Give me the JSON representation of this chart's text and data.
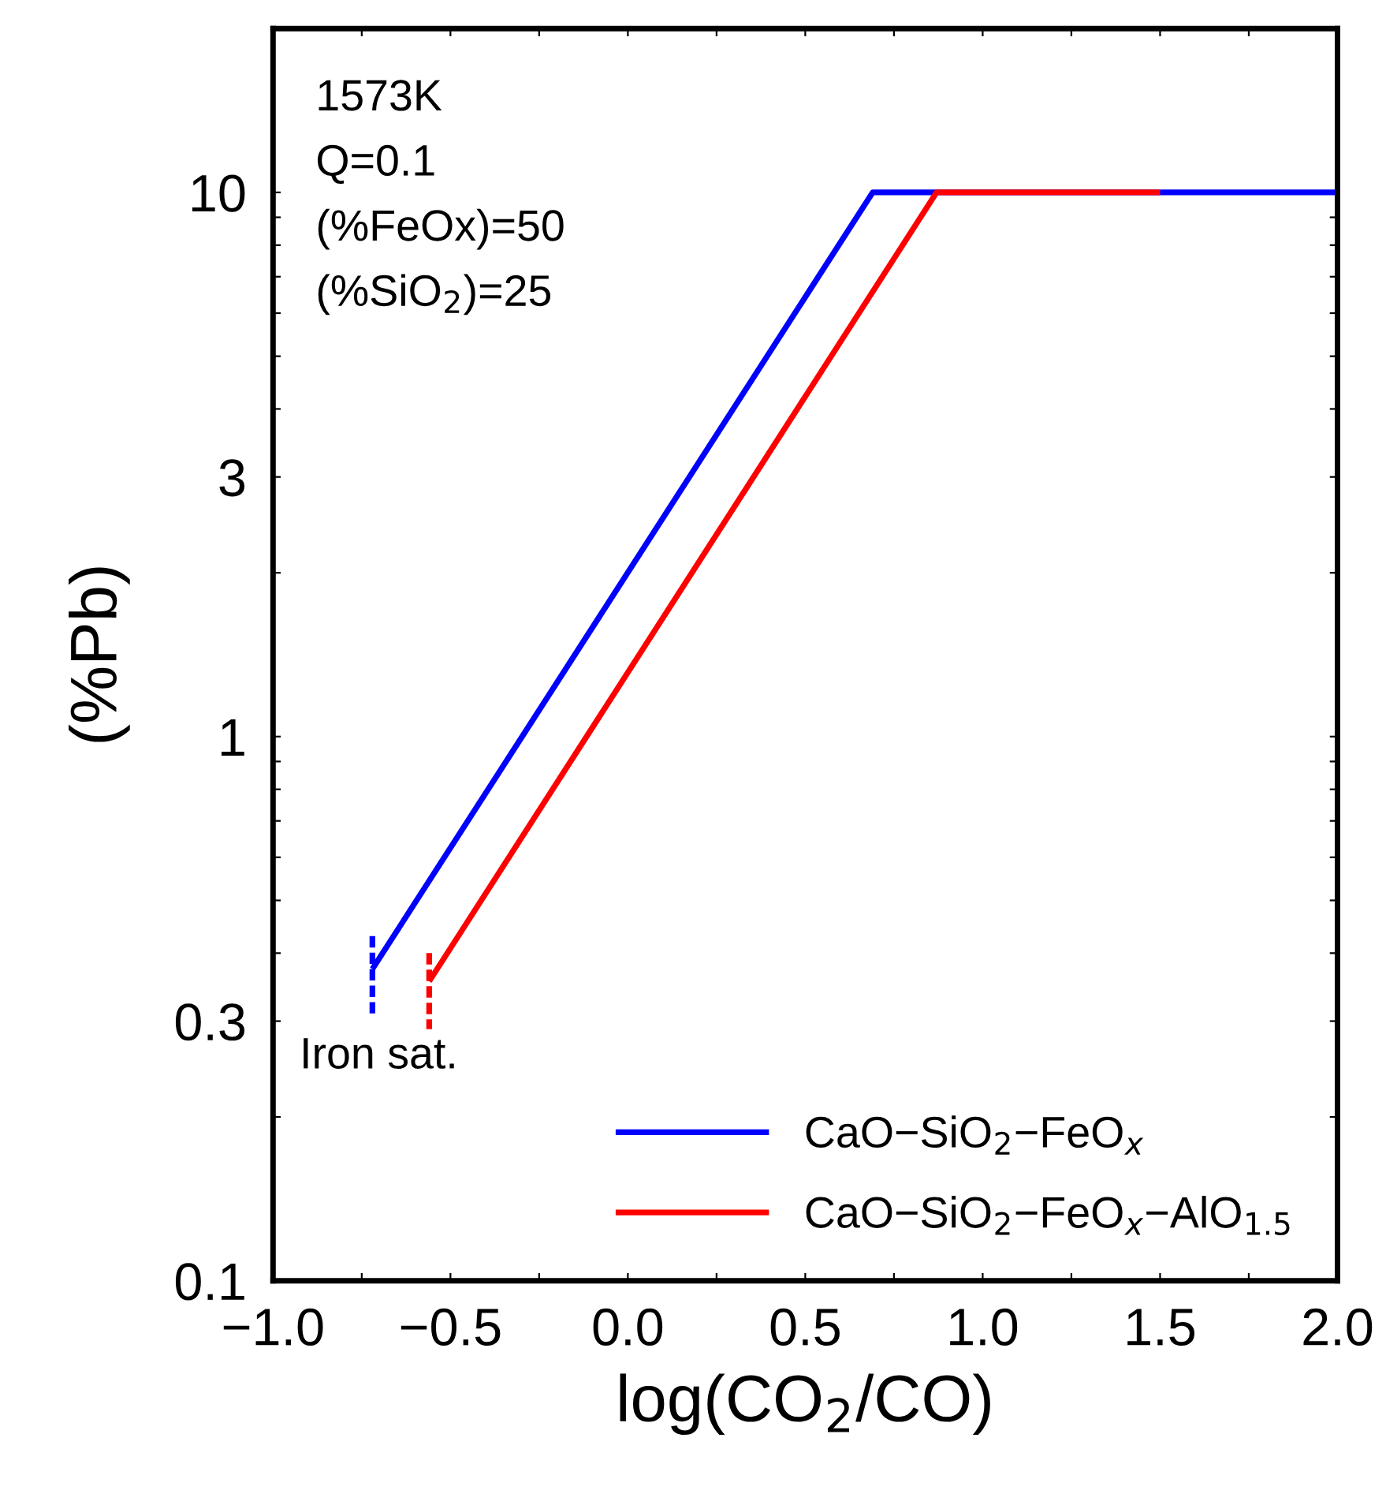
{
  "chart_data": {
    "type": "line",
    "xlabel": "log(CO$_{2}$/CO)",
    "ylabel": "(%Pb)",
    "xlim": [
      -1.0,
      2.0
    ],
    "xticks": [
      {
        "value": -1.0,
        "label": "−1.0"
      },
      {
        "value": -0.75,
        "label": null
      },
      {
        "value": -0.5,
        "label": "−0.5"
      },
      {
        "value": -0.25,
        "label": null
      },
      {
        "value": 0.0,
        "label": "0.0"
      },
      {
        "value": 0.25,
        "label": null
      },
      {
        "value": 0.5,
        "label": "0.5"
      },
      {
        "value": 0.75,
        "label": null
      },
      {
        "value": 1.0,
        "label": "1.0"
      },
      {
        "value": 1.25,
        "label": null
      },
      {
        "value": 1.5,
        "label": "1.5"
      },
      {
        "value": 1.75,
        "label": null
      },
      {
        "value": 2.0,
        "label": "2.0"
      }
    ],
    "ylim": [
      0.1,
      20
    ],
    "log": "y",
    "yticks": [
      0.1,
      {
        "value": 0.2,
        "label": null
      },
      0.3,
      {
        "value": 0.4,
        "label": null
      },
      {
        "value": 0.5,
        "label": null
      },
      {
        "value": 0.6,
        "label": null
      },
      {
        "value": 0.7,
        "label": null
      },
      {
        "value": 0.8,
        "label": null
      },
      {
        "value": 0.9,
        "label": null
      },
      1,
      {
        "value": 2,
        "label": null
      },
      3,
      {
        "value": 4,
        "label": null
      },
      {
        "value": 5,
        "label": null
      },
      {
        "value": 6,
        "label": null
      },
      {
        "value": 7,
        "label": null
      },
      {
        "value": 8,
        "label": null
      },
      {
        "value": 9,
        "label": null
      },
      10,
      {
        "value": 20,
        "label": null
      }
    ],
    "grid": false,
    "legend": "bottom right",
    "marker": "none",
    "series": [
      {
        "name": "CaO−SiO$_{2}$−FeO$_{x}$",
        "color": "#0000ff",
        "x": [
          -0.72,
          0.69,
          2.0
        ],
        "values": [
          0.374,
          10,
          10
        ],
        "line_style": "solid"
      },
      {
        "name": "CaO−SiO$_{2}$−FeO$_{x}$−AlO$_{1.5}$",
        "color": "#ff0000",
        "x": [
          -0.56,
          0.87,
          1.5
        ],
        "values": [
          0.355,
          10,
          10
        ],
        "line_style": "solid"
      },
      {
        "color": "#0000ff",
        "x": [
          -0.72,
          -0.72
        ],
        "values": [
          0.43,
          0.31
        ],
        "line_style": "dashed"
      },
      {
        "color": "#ff0000",
        "x": [
          -0.56,
          -0.56
        ],
        "values": [
          0.4,
          0.29
        ],
        "line_style": "dashed"
      }
    ],
    "annotations": [
      "1573K",
      "Q=0.1",
      "(%FeOx)=50",
      "(%SiO$_{2}$)=25",
      "Iron sat."
    ]
  }
}
